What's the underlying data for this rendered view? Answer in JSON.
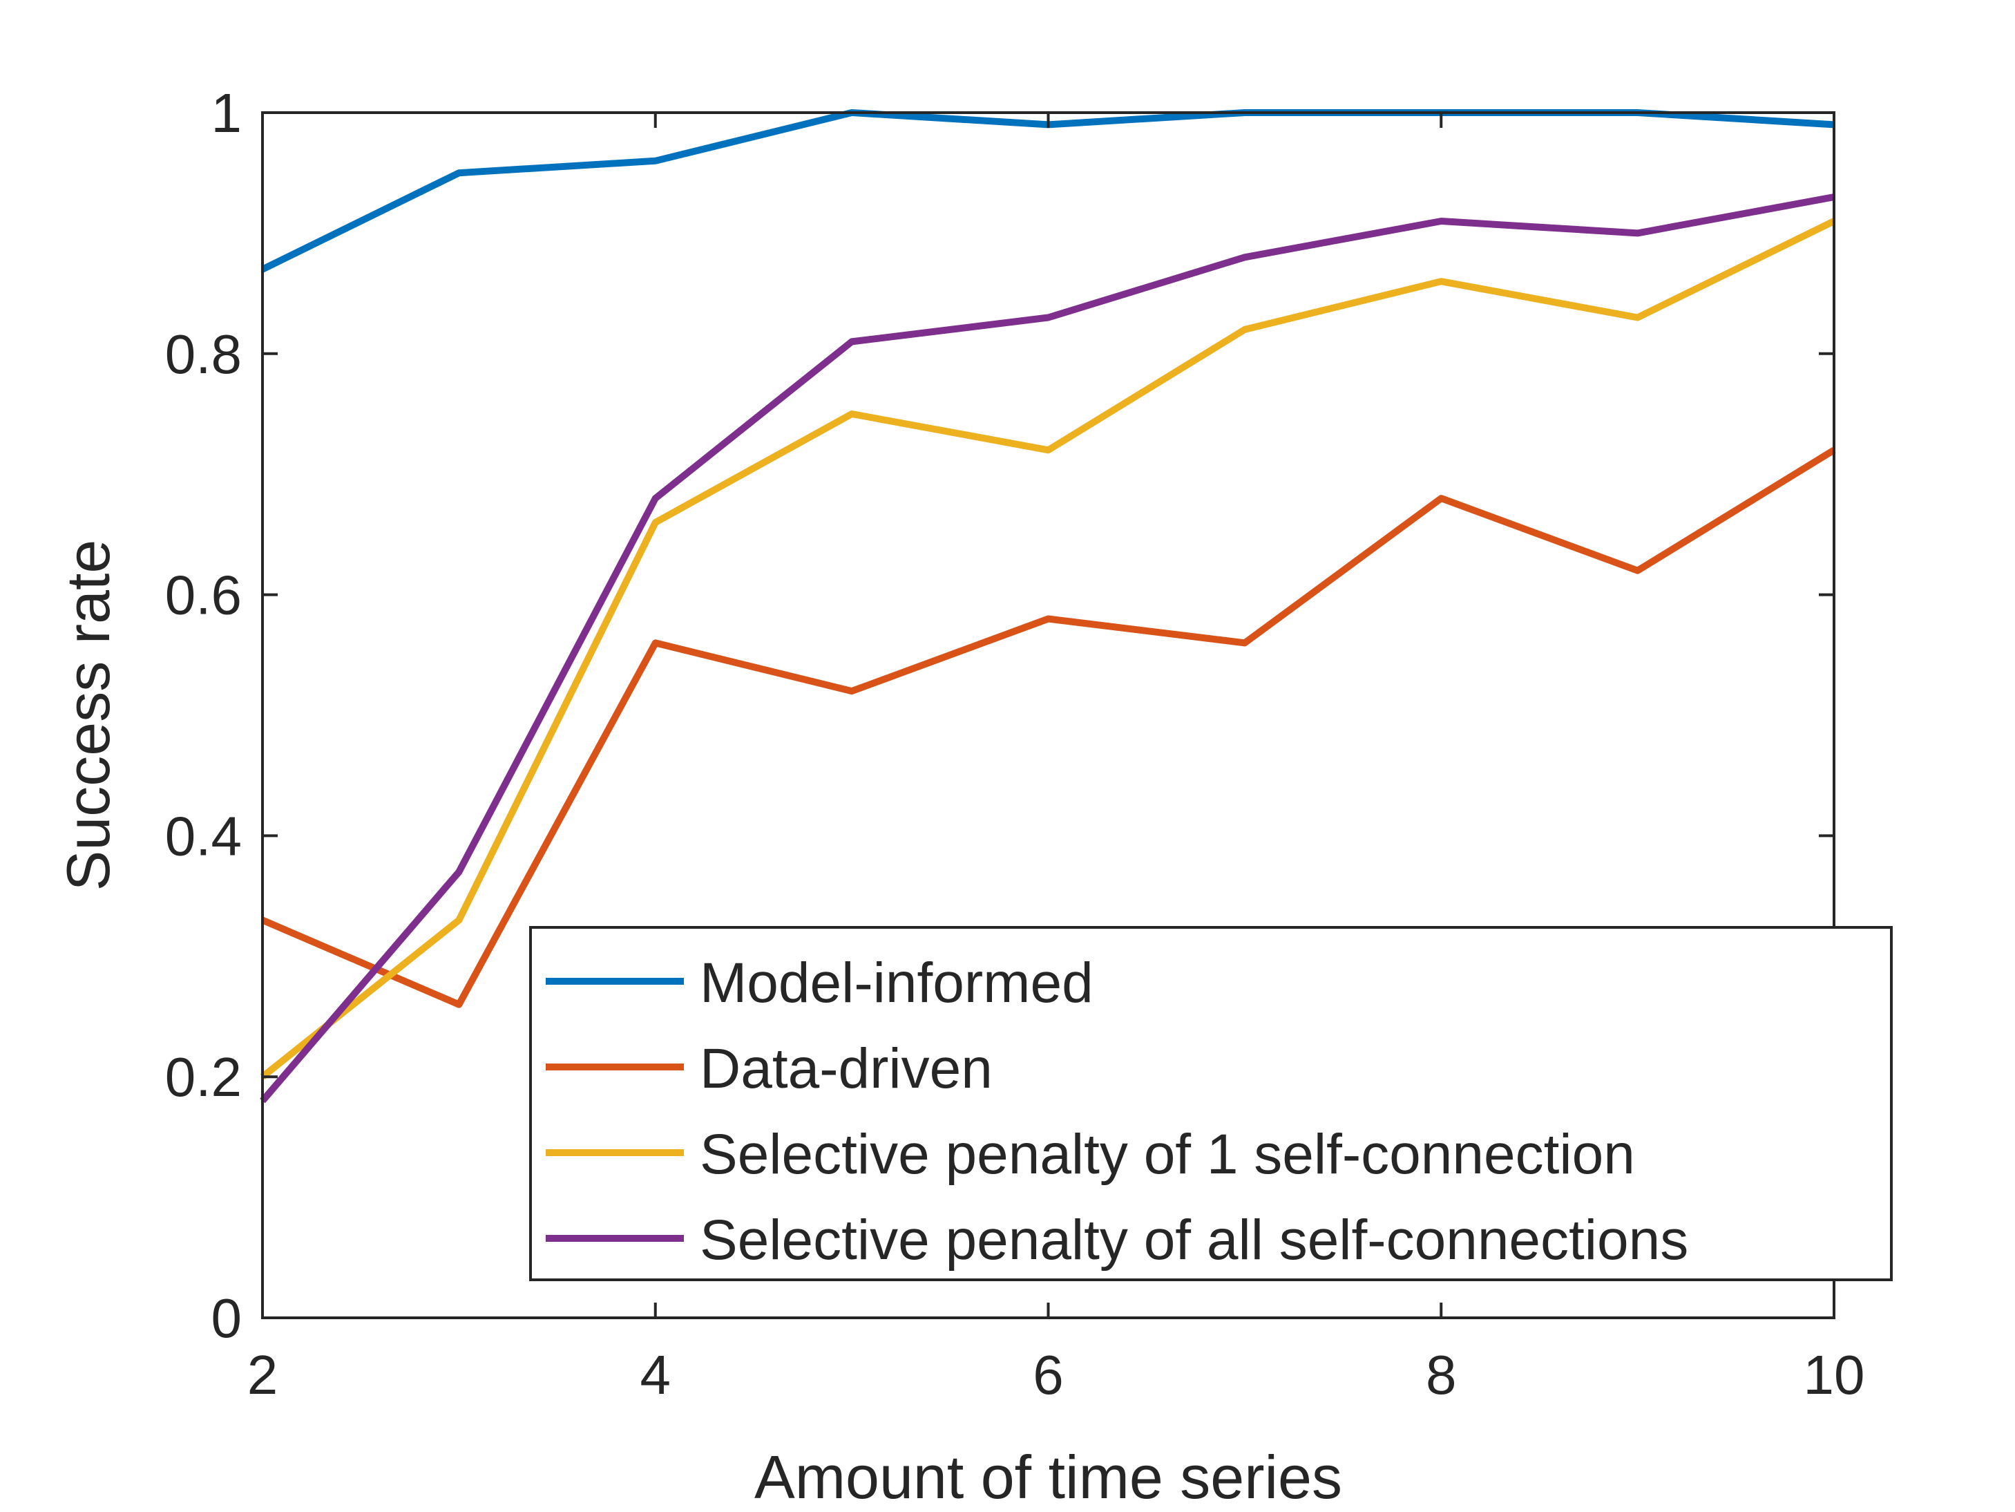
{
  "chart_data": {
    "type": "line",
    "title": "",
    "xlabel": "Amount of time series",
    "ylabel": "Success rate",
    "xlim": [
      2,
      10
    ],
    "ylim": [
      0,
      1
    ],
    "x": [
      2,
      3,
      4,
      5,
      6,
      7,
      8,
      9,
      10
    ],
    "xticks": [
      2,
      4,
      6,
      8,
      10
    ],
    "yticks": [
      0,
      0.2,
      0.4,
      0.6,
      0.8,
      1
    ],
    "xtick_labels": [
      "2",
      "4",
      "6",
      "8",
      "10"
    ],
    "ytick_labels": [
      "0",
      "0.2",
      "0.4",
      "0.6",
      "0.8",
      "1"
    ],
    "grid": false,
    "legend_position": "bottom-right",
    "series": [
      {
        "name": "Model-informed",
        "color": "#0072BD",
        "values": [
          0.87,
          0.95,
          0.96,
          1.0,
          0.99,
          1.0,
          1.0,
          1.0,
          0.99
        ]
      },
      {
        "name": "Data-driven",
        "color": "#D95319",
        "values": [
          0.33,
          0.26,
          0.56,
          0.52,
          0.58,
          0.56,
          0.68,
          0.62,
          0.72
        ]
      },
      {
        "name": "Selective penalty of 1 self-connection",
        "color": "#EDB120",
        "values": [
          0.2,
          0.33,
          0.66,
          0.75,
          0.72,
          0.82,
          0.86,
          0.83,
          0.91
        ]
      },
      {
        "name": "Selective penalty of all self-connections",
        "color": "#7E2F8E",
        "values": [
          0.18,
          0.37,
          0.68,
          0.81,
          0.83,
          0.88,
          0.91,
          0.9,
          0.93
        ]
      }
    ]
  }
}
